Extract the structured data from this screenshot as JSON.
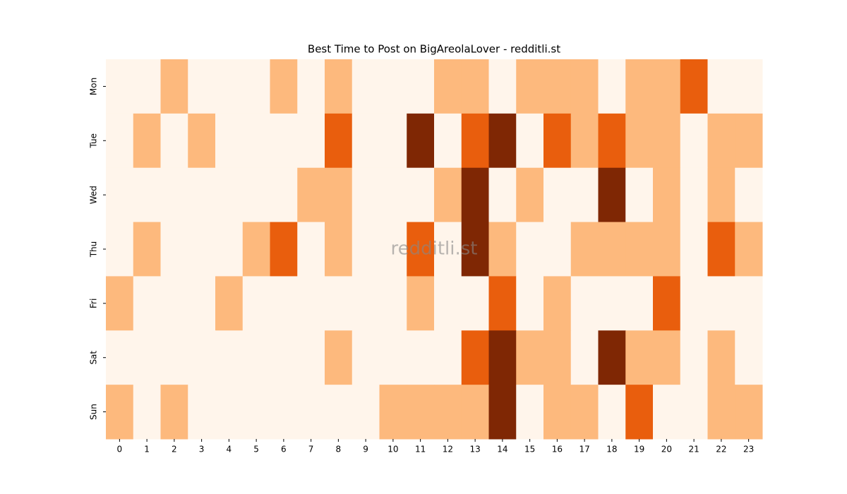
{
  "chart_data": {
    "type": "heatmap",
    "title": "Best Time to Post on BigAreolaLover - redditli.st",
    "watermark": "redditli.st",
    "x": [
      0,
      1,
      2,
      3,
      4,
      5,
      6,
      7,
      8,
      9,
      10,
      11,
      12,
      13,
      14,
      15,
      16,
      17,
      18,
      19,
      20,
      21,
      22,
      23
    ],
    "y": [
      "Mon",
      "Tue",
      "Wed",
      "Thu",
      "Fri",
      "Sat",
      "Sun"
    ],
    "values": [
      [
        0,
        0,
        1,
        0,
        0,
        0,
        1,
        0,
        1,
        0,
        0,
        0,
        1,
        1,
        0,
        1,
        1,
        1,
        0,
        1,
        1,
        2,
        0,
        0
      ],
      [
        0,
        1,
        0,
        1,
        0,
        0,
        0,
        0,
        2,
        0,
        0,
        3,
        0,
        2,
        3,
        0,
        2,
        1,
        2,
        1,
        1,
        0,
        1,
        1
      ],
      [
        0,
        0,
        0,
        0,
        0,
        0,
        0,
        1,
        1,
        0,
        0,
        0,
        1,
        3,
        0,
        1,
        0,
        0,
        3,
        0,
        1,
        0,
        1,
        0
      ],
      [
        0,
        1,
        0,
        0,
        0,
        1,
        2,
        0,
        1,
        0,
        0,
        2,
        0,
        3,
        1,
        0,
        0,
        1,
        1,
        1,
        1,
        0,
        2,
        1
      ],
      [
        1,
        0,
        0,
        0,
        1,
        0,
        0,
        0,
        0,
        0,
        0,
        1,
        0,
        0,
        2,
        0,
        1,
        0,
        0,
        0,
        2,
        0,
        0,
        0
      ],
      [
        0,
        0,
        0,
        0,
        0,
        0,
        0,
        0,
        1,
        0,
        0,
        0,
        0,
        2,
        3,
        1,
        1,
        0,
        3,
        1,
        1,
        0,
        1,
        0
      ],
      [
        1,
        0,
        1,
        0,
        0,
        0,
        0,
        0,
        0,
        0,
        1,
        1,
        1,
        1,
        3,
        0,
        1,
        1,
        0,
        2,
        0,
        0,
        1,
        1
      ]
    ],
    "zlim": [
      0,
      3
    ],
    "colorscale": [
      "#fff5eb",
      "#fdb97d",
      "#e95e0d",
      "#7f2704"
    ]
  }
}
